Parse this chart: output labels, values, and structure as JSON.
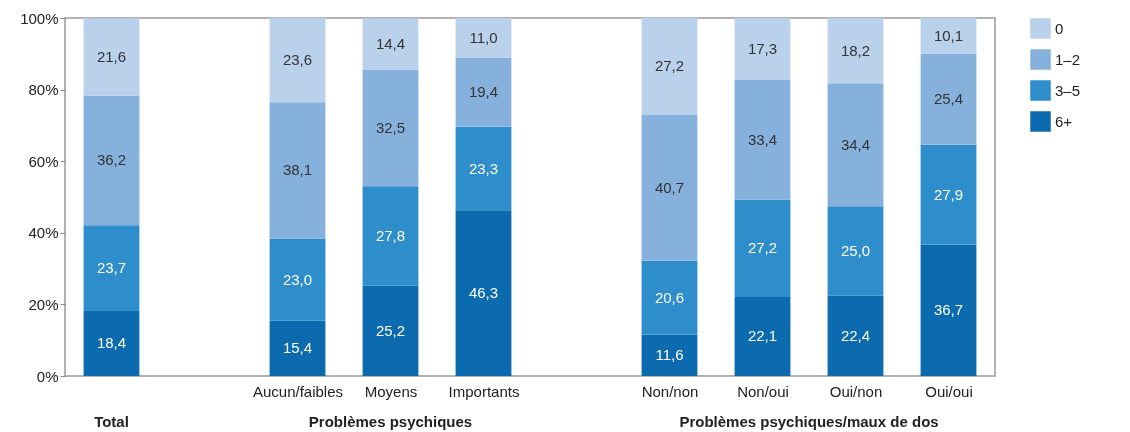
{
  "chart_data": {
    "type": "bar",
    "stacked": true,
    "categories": [
      null,
      null,
      "Aucun/faibles",
      "Moyens",
      "Importants",
      null,
      "Non/non",
      "Non/oui",
      "Oui/non",
      "Oui/oui"
    ],
    "series": [
      {
        "name": "6+",
        "color": "#0b6bae",
        "values": [
          18.4,
          null,
          15.4,
          25.2,
          46.3,
          null,
          11.6,
          22.1,
          22.4,
          36.7
        ],
        "value_labels": [
          "18,4",
          null,
          "15,4",
          "25,2",
          "46,3",
          null,
          "11,6",
          "22,1",
          "22,4",
          "36,7"
        ]
      },
      {
        "name": "3–5",
        "color": "#2e8dcb",
        "values": [
          23.7,
          null,
          23.0,
          27.8,
          23.3,
          null,
          20.6,
          27.2,
          25.0,
          27.9
        ],
        "value_labels": [
          "23,7",
          null,
          "23,0",
          "27,8",
          "23,3",
          null,
          "20,6",
          "27,2",
          "25,0",
          "27,9"
        ]
      },
      {
        "name": "1–2",
        "color": "#87b1dd",
        "values": [
          36.2,
          null,
          38.1,
          32.5,
          19.4,
          null,
          40.7,
          33.4,
          34.4,
          25.4
        ],
        "value_labels": [
          "36,2",
          null,
          "38,1",
          "32,5",
          "19,4",
          null,
          "40,7",
          "33,4",
          "34,4",
          "25,4"
        ]
      },
      {
        "name": "0",
        "color": "#b9d1eb",
        "values": [
          21.6,
          null,
          23.6,
          14.4,
          11.0,
          null,
          27.2,
          17.3,
          18.2,
          10.1
        ],
        "value_labels": [
          "21,6",
          null,
          "23,6",
          "14,4",
          "11,0",
          null,
          "27,2",
          "17,3",
          "18,2",
          "10,1"
        ]
      }
    ],
    "ylim": [
      0,
      100
    ],
    "yticks": [
      {
        "value": 0,
        "label": "0%"
      },
      {
        "value": 20,
        "label": "20%"
      },
      {
        "value": 40,
        "label": "40%"
      },
      {
        "value": 60,
        "label": "60%"
      },
      {
        "value": 80,
        "label": "80%"
      },
      {
        "value": 100,
        "label": "100%"
      }
    ],
    "annotations": [
      "Total",
      "Problèmes psychiques",
      "Problèmes psychiques/maux de dos"
    ],
    "grid": false,
    "legend": "top right"
  }
}
